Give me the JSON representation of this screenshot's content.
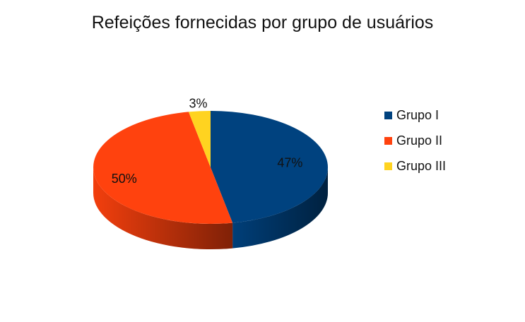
{
  "chart_data": {
    "type": "pie",
    "title": "Refeições fornecidas por grupo de usuários",
    "categories": [
      "Grupo I",
      "Grupo II",
      "Grupo III"
    ],
    "values": [
      47,
      50,
      3
    ],
    "data_labels": [
      "47%",
      "50%",
      "3%"
    ],
    "colors": [
      "#00427f",
      "#ff420e",
      "#ffd320"
    ],
    "style": "3d",
    "legend_position": "right"
  }
}
